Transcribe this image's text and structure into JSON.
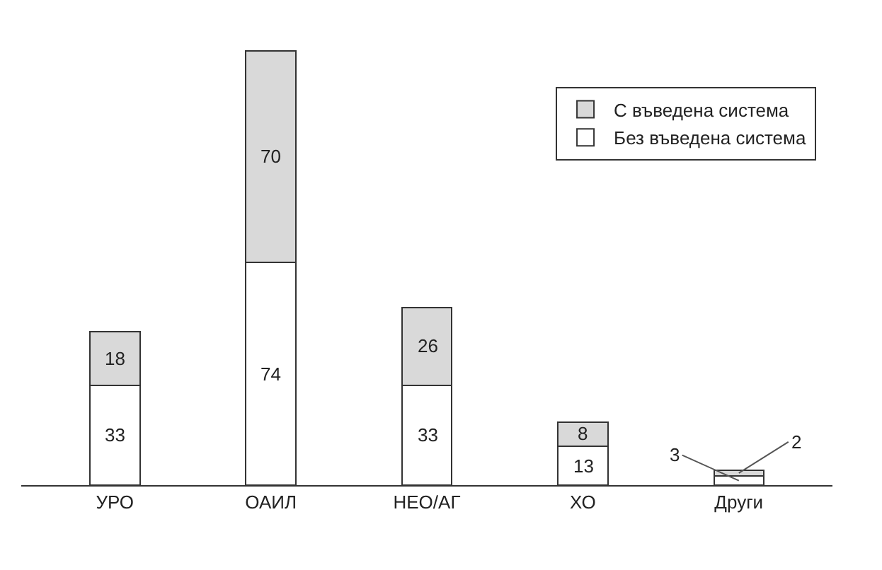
{
  "chart_data": {
    "type": "bar",
    "stacked": true,
    "data_labels": true,
    "legend": "top right",
    "categories": [
      "УРО",
      "ОАИЛ",
      "НЕО/АГ",
      "ХО",
      "Други"
    ],
    "series": [
      {
        "name": "Без въведена система",
        "color": "#ffffff",
        "values": [
          33,
          74,
          33,
          13,
          3
        ]
      },
      {
        "name": "С въведена система",
        "color": "#d9d9d9",
        "values": [
          18,
          70,
          26,
          8,
          2
        ]
      }
    ]
  }
}
